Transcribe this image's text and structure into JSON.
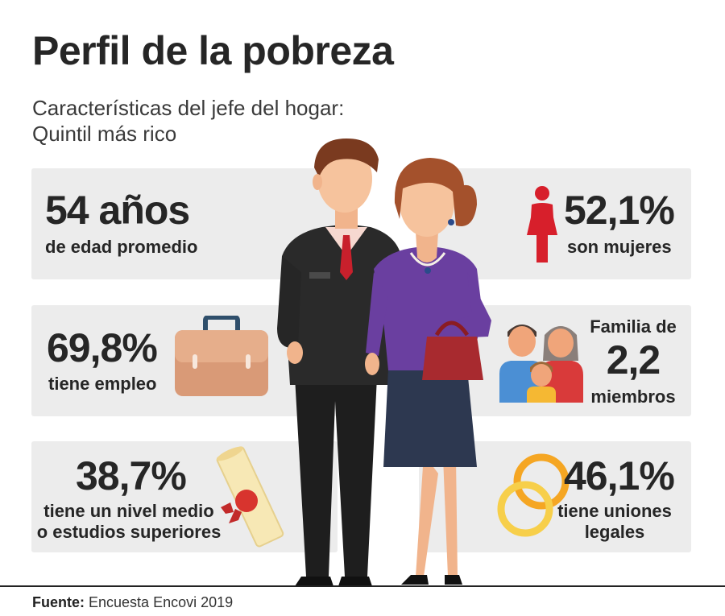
{
  "title": "Perfil de la pobreza",
  "subtitle": {
    "line1": "Características del jefe del hogar:",
    "line2": "Quintil más rico"
  },
  "stats": {
    "age": {
      "value": "54 años",
      "label": "de edad promedio"
    },
    "women": {
      "value": "52,1%",
      "label": "son mujeres"
    },
    "employment": {
      "value": "69,8%",
      "label": "tiene empleo"
    },
    "family": {
      "label_top": "Familia de",
      "value": "2,2",
      "label_bottom": "miembros"
    },
    "education": {
      "value": "38,7%",
      "label_line1": "tiene un nivel medio",
      "label_line2": "o estudios superiores"
    },
    "unions": {
      "value": "46,1%",
      "label_line1": "tiene uniones",
      "label_line2": "legales"
    }
  },
  "footer": {
    "label": "Fuente:",
    "text": "Encuesta Encovi 2019"
  },
  "colors": {
    "card_bg": "#ececec",
    "woman_icon": "#d71f2b",
    "briefcase": "#dfa583",
    "ring_orange": "#f5a623",
    "ring_yellow": "#f7cf4a",
    "text_dark": "#262626"
  },
  "icons": [
    "woman-icon",
    "briefcase-icon",
    "family-icon",
    "diploma-icon",
    "rings-icon",
    "couple-illustration"
  ]
}
